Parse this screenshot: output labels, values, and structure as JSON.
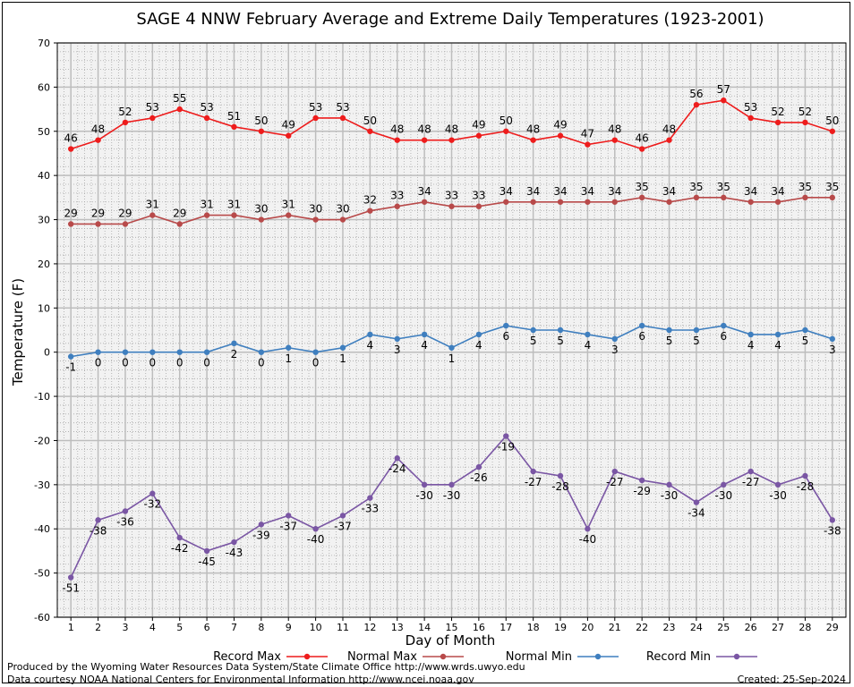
{
  "chart_data": {
    "type": "line",
    "title": "SAGE 4 NNW February Average and Extreme Daily Temperatures (1923-2001)",
    "xlabel": "Day of Month",
    "ylabel": "Temperature (F)",
    "ylim": [
      -60,
      70
    ],
    "yticks": [
      -60,
      -50,
      -40,
      -30,
      -20,
      -10,
      0,
      10,
      20,
      30,
      40,
      50,
      60,
      70
    ],
    "x": [
      1,
      2,
      3,
      4,
      5,
      6,
      7,
      8,
      9,
      10,
      11,
      12,
      13,
      14,
      15,
      16,
      17,
      18,
      19,
      20,
      21,
      22,
      23,
      24,
      25,
      26,
      27,
      28,
      29
    ],
    "grid": true,
    "legend_position": "bottom",
    "series": [
      {
        "name": "Record Max",
        "color": "#ee1c1c",
        "values": [
          46,
          48,
          52,
          53,
          55,
          53,
          51,
          50,
          49,
          53,
          53,
          50,
          48,
          48,
          48,
          49,
          50,
          48,
          49,
          47,
          48,
          46,
          48,
          56,
          57,
          53,
          52,
          52,
          50
        ],
        "label_pos": "above"
      },
      {
        "name": "Normal Max",
        "color": "#b84a4a",
        "values": [
          29,
          29,
          29,
          31,
          29,
          31,
          31,
          30,
          31,
          30,
          30,
          32,
          33,
          34,
          33,
          33,
          34,
          34,
          34,
          34,
          34,
          35,
          34,
          35,
          35,
          34,
          34,
          35,
          35
        ],
        "label_pos": "above"
      },
      {
        "name": "Normal Min",
        "color": "#3f7fbf",
        "values": [
          -1,
          0,
          0,
          0,
          0,
          0,
          2,
          0,
          1,
          0,
          1,
          4,
          3,
          4,
          1,
          4,
          6,
          5,
          5,
          4,
          3,
          6,
          5,
          5,
          6,
          4,
          4,
          5,
          3
        ],
        "label_pos": "below"
      },
      {
        "name": "Record Min",
        "color": "#7a56a4",
        "values": [
          -51,
          -38,
          -36,
          -32,
          -42,
          -45,
          -43,
          -39,
          -37,
          -40,
          -37,
          -33,
          -24,
          -30,
          -30,
          -26,
          -19,
          -27,
          -28,
          -40,
          -27,
          -29,
          -30,
          -34,
          -30,
          -27,
          -30,
          -28,
          -38
        ],
        "label_pos": "below"
      }
    ]
  },
  "footer": {
    "produced_by": "Produced by the Wyoming Water Resources Data System/State Climate Office http://www.wrds.uwyo.edu",
    "courtesy": "Data courtesy NOAA National Centers for Environmental Information http://www.ncei.noaa.gov",
    "created": "Created:  25-Sep-2024"
  }
}
